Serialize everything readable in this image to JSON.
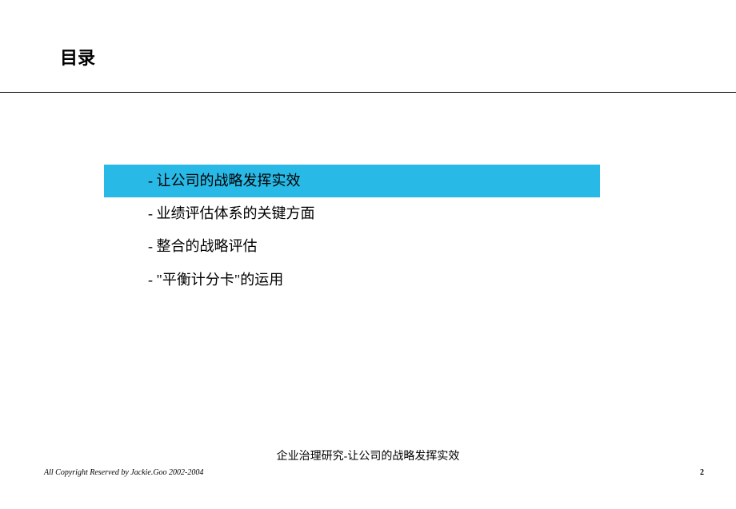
{
  "header": {
    "title": "目录"
  },
  "toc": {
    "items": [
      {
        "text": "- 让公司的战略发挥实效",
        "highlighted": true
      },
      {
        "text": "- 业绩评估体系的关键方面",
        "highlighted": false
      },
      {
        "text": "- 整合的战略评估",
        "highlighted": false
      },
      {
        "text": "- \"平衡计分卡\"的运用",
        "highlighted": false
      }
    ],
    "highlight_color": "#29b9e6"
  },
  "footer": {
    "subtitle": "企业治理研究-让公司的战略发挥实效",
    "copyright": "All Copyright Reserved by Jackie.Goo 2002-2004",
    "page_number": "2"
  }
}
